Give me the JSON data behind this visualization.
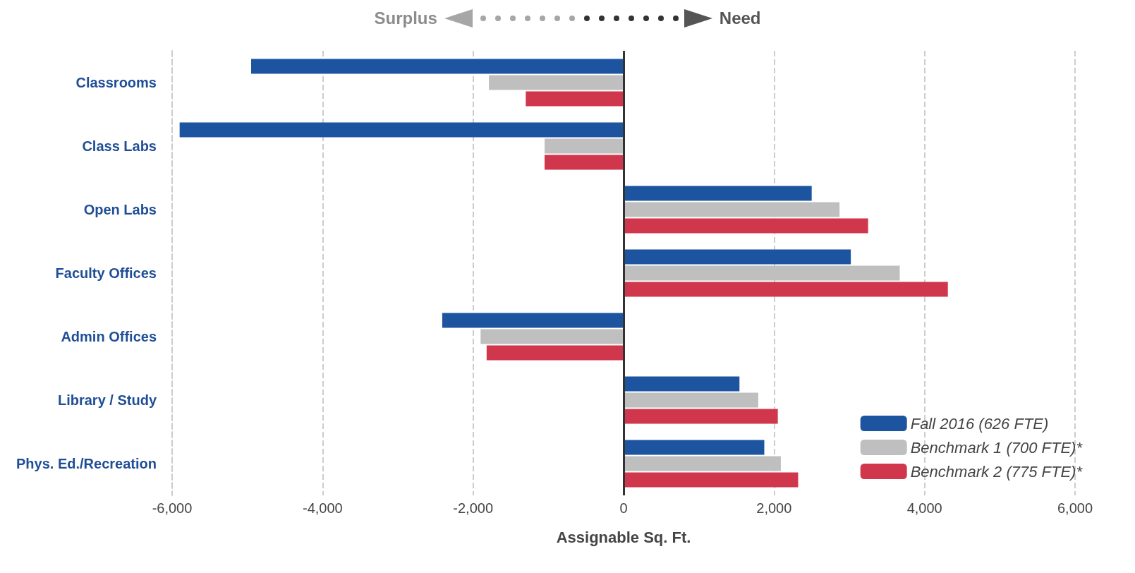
{
  "chart_data": {
    "type": "bar",
    "orientation": "horizontal",
    "xlabel": "Assignable Sq. Ft.",
    "annotations": [
      "Surplus",
      "Need"
    ],
    "categories": [
      "Classrooms",
      "Class Labs",
      "Open Labs",
      "Faculty Offices",
      "Admin Offices",
      "Library / Study",
      "Phys. Ed./Recreation"
    ],
    "series": [
      {
        "name": "Fall 2016 (626 FTE)",
        "color": "#1c54a0",
        "values": [
          -4950,
          -5900,
          2500,
          3020,
          -2410,
          1540,
          1870
        ]
      },
      {
        "name": "Benchmark 1 (700 FTE)*",
        "color": "#bfbfbf",
        "values": [
          -1790,
          -1050,
          2870,
          3670,
          -1900,
          1790,
          2090
        ]
      },
      {
        "name": "Benchmark 2 (775 FTE)*",
        "color": "#d0374c",
        "values": [
          -1300,
          -1050,
          3250,
          4310,
          -1820,
          2050,
          2320
        ]
      }
    ],
    "xlim": [
      -6000,
      6000
    ],
    "xticks": [
      {
        "value": -6000,
        "label": "-6,000"
      },
      {
        "value": -4000,
        "label": "-4,000"
      },
      {
        "value": -2000,
        "label": "-2,000"
      },
      0,
      {
        "value": 2000,
        "label": "2,000"
      },
      {
        "value": 4000,
        "label": "4,000"
      },
      {
        "value": 6000,
        "label": "6,000"
      }
    ],
    "grid": "x",
    "legend": "bottom right"
  }
}
